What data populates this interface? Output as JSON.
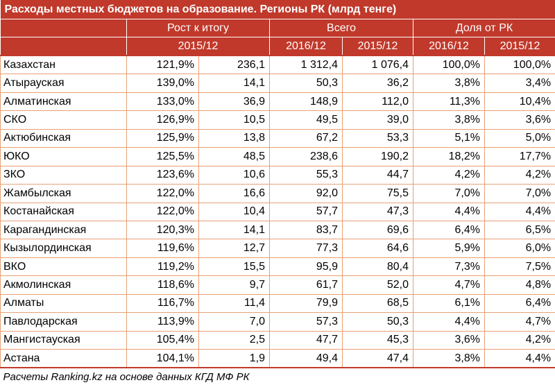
{
  "title": "Расходы местных бюджетов на образование. Регионы РК (млрд тенге)",
  "headers": {
    "group_growth": "Рост к итогу",
    "group_total": "Всего",
    "group_share": "Доля от РК",
    "sub_growth": "2015/12",
    "sub_total_2016": "2016/12",
    "sub_total_2015": "2015/12",
    "sub_share_2016": "2016/12",
    "sub_share_2015": "2015/12"
  },
  "rows": [
    {
      "region": "Казахстан",
      "growth_pct": "121,9%",
      "growth_abs": "236,1",
      "total_2016": "1 312,4",
      "total_2015": "1 076,4",
      "share_2016": "100,0%",
      "share_2015": "100,0%"
    },
    {
      "region": "Атырауская",
      "growth_pct": "139,0%",
      "growth_abs": "14,1",
      "total_2016": "50,3",
      "total_2015": "36,2",
      "share_2016": "3,8%",
      "share_2015": "3,4%"
    },
    {
      "region": "Алматинская",
      "growth_pct": "133,0%",
      "growth_abs": "36,9",
      "total_2016": "148,9",
      "total_2015": "112,0",
      "share_2016": "11,3%",
      "share_2015": "10,4%"
    },
    {
      "region": "СКО",
      "growth_pct": "126,9%",
      "growth_abs": "10,5",
      "total_2016": "49,5",
      "total_2015": "39,0",
      "share_2016": "3,8%",
      "share_2015": "3,6%"
    },
    {
      "region": "Актюбинская",
      "growth_pct": "125,9%",
      "growth_abs": "13,8",
      "total_2016": "67,2",
      "total_2015": "53,3",
      "share_2016": "5,1%",
      "share_2015": "5,0%"
    },
    {
      "region": "ЮКО",
      "growth_pct": "125,5%",
      "growth_abs": "48,5",
      "total_2016": "238,6",
      "total_2015": "190,2",
      "share_2016": "18,2%",
      "share_2015": "17,7%"
    },
    {
      "region": "ЗКО",
      "growth_pct": "123,6%",
      "growth_abs": "10,6",
      "total_2016": "55,3",
      "total_2015": "44,7",
      "share_2016": "4,2%",
      "share_2015": "4,2%"
    },
    {
      "region": "Жамбылская",
      "growth_pct": "122,0%",
      "growth_abs": "16,6",
      "total_2016": "92,0",
      "total_2015": "75,5",
      "share_2016": "7,0%",
      "share_2015": "7,0%"
    },
    {
      "region": "Костанайская",
      "growth_pct": "122,0%",
      "growth_abs": "10,4",
      "total_2016": "57,7",
      "total_2015": "47,3",
      "share_2016": "4,4%",
      "share_2015": "4,4%"
    },
    {
      "region": "Карагандинская",
      "growth_pct": "120,3%",
      "growth_abs": "14,1",
      "total_2016": "83,7",
      "total_2015": "69,6",
      "share_2016": "6,4%",
      "share_2015": "6,5%"
    },
    {
      "region": "Кызылординская",
      "growth_pct": "119,6%",
      "growth_abs": "12,7",
      "total_2016": "77,3",
      "total_2015": "64,6",
      "share_2016": "5,9%",
      "share_2015": "6,0%"
    },
    {
      "region": "ВКО",
      "growth_pct": "119,2%",
      "growth_abs": "15,5",
      "total_2016": "95,9",
      "total_2015": "80,4",
      "share_2016": "7,3%",
      "share_2015": "7,5%"
    },
    {
      "region": "Акмолинская",
      "growth_pct": "118,6%",
      "growth_abs": "9,7",
      "total_2016": "61,7",
      "total_2015": "52,0",
      "share_2016": "4,7%",
      "share_2015": "4,8%"
    },
    {
      "region": "Алматы",
      "growth_pct": "116,7%",
      "growth_abs": "11,4",
      "total_2016": "79,9",
      "total_2015": "68,5",
      "share_2016": "6,1%",
      "share_2015": "6,4%"
    },
    {
      "region": "Павлодарская",
      "growth_pct": "113,9%",
      "growth_abs": "7,0",
      "total_2016": "57,3",
      "total_2015": "50,3",
      "share_2016": "4,4%",
      "share_2015": "4,7%"
    },
    {
      "region": "Мангистауская",
      "growth_pct": "105,4%",
      "growth_abs": "2,5",
      "total_2016": "47,7",
      "total_2015": "45,3",
      "share_2016": "3,6%",
      "share_2015": "4,2%"
    },
    {
      "region": "Астана",
      "growth_pct": "104,1%",
      "growth_abs": "1,9",
      "total_2016": "49,4",
      "total_2015": "47,4",
      "share_2016": "3,8%",
      "share_2015": "4,4%"
    }
  ],
  "footer": "Расчеты Ranking.kz на основе данных КГД МФ РК",
  "colors": {
    "header_bg": "#c0392b",
    "header_text": "#ffffff",
    "grid_line": "#e8a074"
  }
}
